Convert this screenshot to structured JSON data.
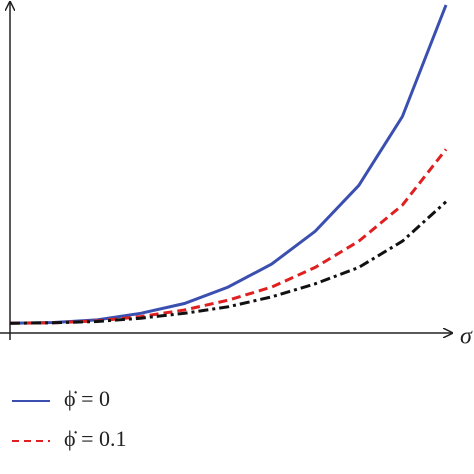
{
  "chart_data": {
    "type": "line",
    "x_label": "σ",
    "x": [
      0,
      0.1,
      0.2,
      0.3,
      0.4,
      0.5,
      0.6,
      0.7,
      0.8,
      0.9,
      1.0
    ],
    "xlim": [
      0,
      1
    ],
    "ylim": [
      0,
      1
    ],
    "series": [
      {
        "name": "ϕ̇ = 0",
        "color": "#3b4fb0",
        "dash": "solid",
        "values": [
          0.03,
          0.032,
          0.04,
          0.06,
          0.09,
          0.14,
          0.21,
          0.31,
          0.45,
          0.66,
          1.0
        ]
      },
      {
        "name": "ϕ̇ = 0.1",
        "color": "#e02020",
        "dash": "dashed",
        "values": [
          0.03,
          0.031,
          0.037,
          0.05,
          0.07,
          0.1,
          0.14,
          0.2,
          0.28,
          0.39,
          0.56
        ]
      },
      {
        "color": "#111111",
        "dash": "dashdot",
        "values": [
          0.03,
          0.031,
          0.035,
          0.045,
          0.06,
          0.08,
          0.11,
          0.15,
          0.2,
          0.28,
          0.4
        ]
      }
    ]
  }
}
